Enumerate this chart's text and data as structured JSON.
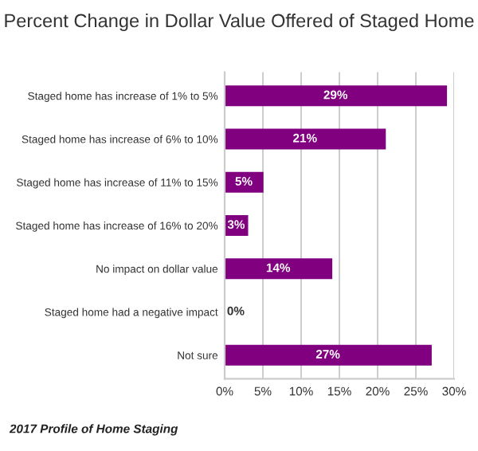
{
  "chart_data": {
    "type": "bar",
    "orientation": "horizontal",
    "title": "Percent Change in Dollar Value Offered of Staged Home",
    "categories": [
      "Staged home has increase of 1% to 5%",
      "Staged home has increase of 6% to 10%",
      "Staged home has increase of 11% to 15%",
      "Staged home has increase of 16% to 20%",
      "No impact on dollar value",
      "Staged home had a negative impact",
      "Not sure"
    ],
    "values": [
      29,
      21,
      5,
      3,
      14,
      0,
      27
    ],
    "value_labels": [
      "29%",
      "21%",
      "5%",
      "3%",
      "14%",
      "0%",
      "27%"
    ],
    "color": "#800080",
    "xlim": [
      0,
      30
    ],
    "xticks": [
      {
        "value": 0,
        "label": "0%"
      },
      {
        "value": 5,
        "label": "5%"
      },
      {
        "value": 10,
        "label": "10%"
      },
      {
        "value": 15,
        "label": "15%"
      },
      {
        "value": 20,
        "label": "20%"
      },
      {
        "value": 25,
        "label": "25%"
      },
      {
        "value": 30,
        "label": "30%"
      }
    ],
    "grid": "x",
    "annotations": [
      "2017 Profile of Home Staging"
    ]
  }
}
